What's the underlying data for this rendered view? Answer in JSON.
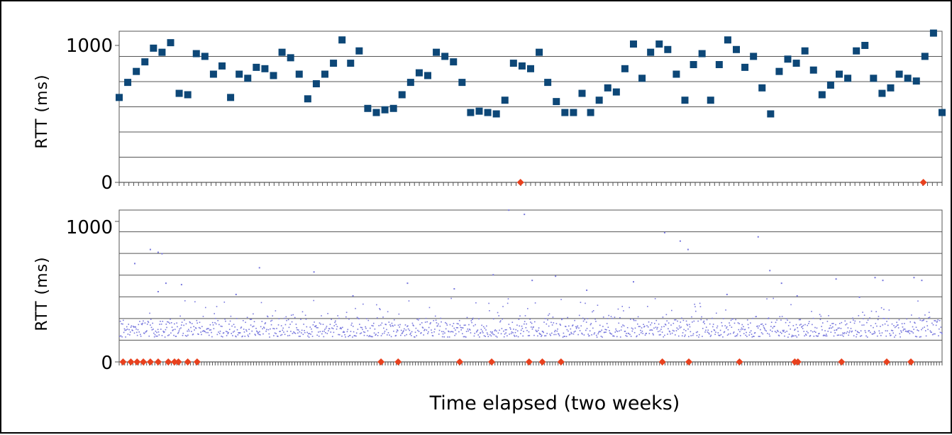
{
  "colors": {
    "top_marker": "#0d4777",
    "bottom_marker": "#7777dd",
    "loss_marker": "#e8411e",
    "grid": "#555555",
    "frame": "#000000"
  },
  "xlabel": "Time elapsed (two weeks)",
  "chart_data": [
    {
      "type": "scatter",
      "ylabel": "RTT (ms)",
      "ylim": [
        0,
        1100
      ],
      "yticks": [
        0,
        1000
      ],
      "grid": true,
      "x_ticks": 170,
      "xlabel": "Time elapsed (two weeks)",
      "series": [
        {
          "marker": "square",
          "color": "#0d4777",
          "x": [
            0,
            1.1,
            2.2,
            3.3,
            4.4,
            5.5,
            6.6,
            7.7,
            8.8,
            9.9,
            11,
            12.1,
            13.2,
            14.3,
            15.4,
            16.5,
            17.6,
            18.7,
            19.8,
            20.9,
            22,
            23.1,
            24.2,
            25.3,
            26.4,
            27.5,
            28.6,
            29.7,
            30.8,
            31.9,
            33,
            34.1,
            35.2,
            36.3,
            37.4,
            38.5,
            39.6,
            40.7,
            41.8,
            42.9,
            44,
            45.1,
            46.2,
            47.3,
            48.4,
            49.5,
            50.6,
            51.7,
            52.8,
            53.9,
            55,
            56.1,
            57.2,
            58.3,
            59.4,
            60.5,
            61.6,
            62.7,
            63.8,
            64.9,
            66,
            67.1,
            68.2,
            69.3,
            70.4,
            71.5,
            72.6,
            73.7,
            74.8,
            75.9,
            77,
            78.1,
            79.2,
            80.3,
            81.4,
            82.5,
            83.6,
            84.7,
            85.8,
            86.9,
            88,
            89.1,
            90.2,
            91.3,
            92.4,
            93.5,
            94.6,
            95.7,
            96.8,
            97.9,
            99,
            100.1,
            101.2,
            102.3,
            103.4,
            104.5,
            105.6
          ],
          "y": [
            620,
            730,
            810,
            880,
            980,
            950,
            1020,
            650,
            640,
            940,
            920,
            790,
            850,
            620,
            790,
            760,
            840,
            830,
            780,
            950,
            910,
            790,
            610,
            720,
            790,
            870,
            1040,
            870,
            960,
            540,
            510,
            530,
            540,
            640,
            730,
            800,
            780,
            950,
            920,
            880,
            730,
            510,
            520,
            510,
            500,
            600,
            870,
            850,
            830,
            950,
            730,
            590,
            510,
            510,
            650,
            510,
            600,
            690,
            660,
            830,
            1010,
            760,
            950,
            1010,
            970,
            790,
            600,
            860,
            940,
            600,
            860,
            1040,
            970,
            840,
            920,
            690,
            500,
            810,
            900,
            870,
            960,
            820,
            640,
            710,
            790,
            760,
            960,
            1000,
            760,
            650,
            690,
            790,
            760,
            740,
            920,
            1090,
            510
          ]
        }
      ],
      "loss_markers_x": [
        51.5,
        103.2
      ]
    },
    {
      "type": "scatter",
      "ylabel": "RTT (ms)",
      "ylim": [
        0,
        1100
      ],
      "yticks": [
        0,
        1000
      ],
      "grid": true,
      "x_ticks": 300,
      "xlabel": "Time elapsed (two weeks)",
      "series": [
        {
          "marker": "dot",
          "color": "#7777dd",
          "x": [
            2,
            4,
            5,
            5.5,
            6,
            8,
            18,
            25,
            37,
            48,
            50,
            52,
            53,
            56,
            66,
            70,
            72,
            73,
            82,
            83.5,
            85,
            92,
            97,
            98,
            102,
            103,
            5,
            15,
            30,
            43,
            60,
            78,
            87,
            95
          ],
          "y": [
            700,
            800,
            780,
            770,
            560,
            550,
            670,
            640,
            560,
            620,
            1080,
            1050,
            580,
            610,
            570,
            920,
            860,
            800,
            890,
            650,
            560,
            590,
            600,
            580,
            600,
            580,
            500,
            480,
            470,
            520,
            510,
            480,
            470,
            460
          ],
          "band": {
            "y_min": 180,
            "y_typical": 240,
            "y_spread_max": 460
          }
        }
      ],
      "loss_markers_x": [
        0.5,
        1.5,
        2.3,
        3.1,
        4,
        5,
        6.3,
        7.1,
        7.6,
        8.8,
        10,
        33.6,
        35.8,
        43.7,
        47.8,
        52.6,
        54.3,
        56.7,
        69.7,
        73.1,
        79.6,
        86.7,
        87.1,
        92.7,
        98.5,
        101.6
      ]
    }
  ]
}
